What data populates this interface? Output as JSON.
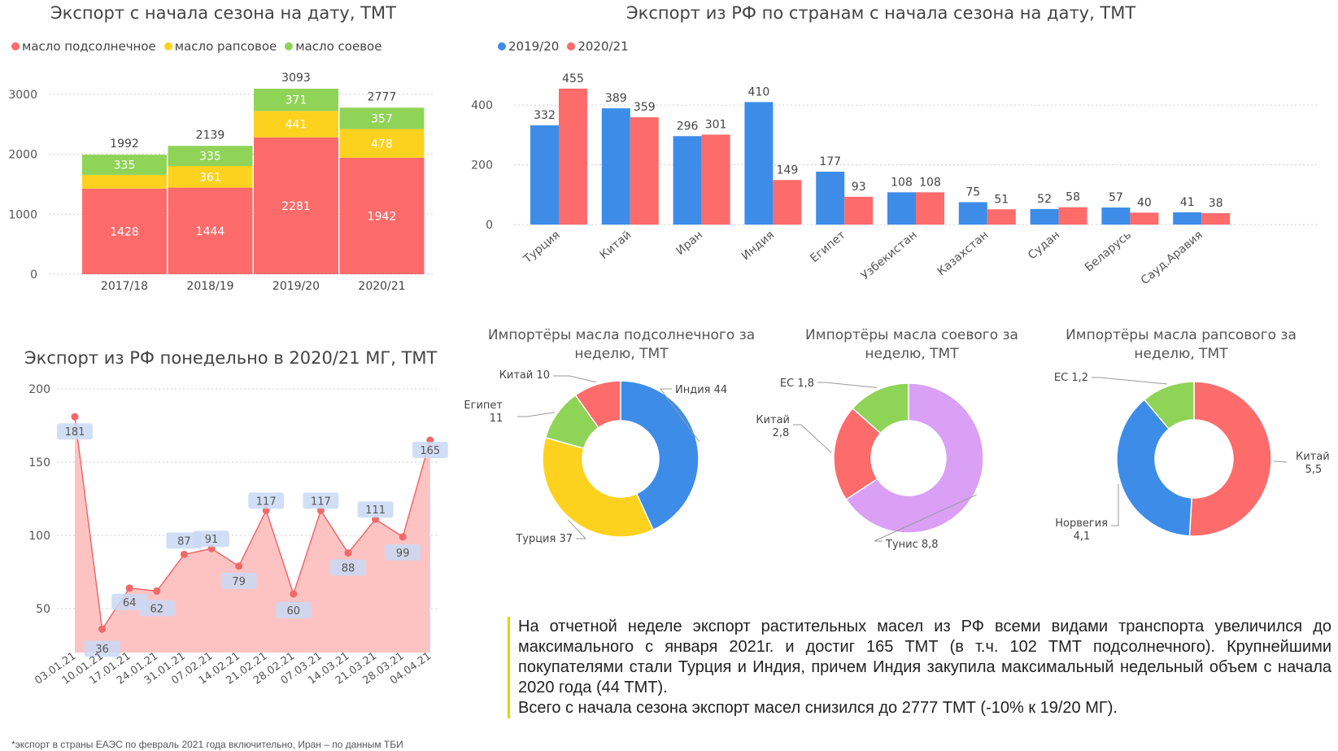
{
  "colors": {
    "sunflower": "#fd6b6b",
    "rapeseed": "#fdd21f",
    "soy": "#8fd357",
    "y2019": "#3d8de8",
    "y2020": "#fd6b6b",
    "weekly_line": "#f06868",
    "weekly_fill": "#fdc3c3",
    "label_box": "#c9d9f5",
    "note_bar": "#e8d300",
    "purple": "#d9a0f5",
    "blue": "#3d8de8",
    "yellow": "#fdd21f",
    "green": "#8fd357",
    "red": "#fd6b6b"
  },
  "chart_data": [
    {
      "id": "season_export",
      "type": "bar",
      "stacked": true,
      "title": "Экспорт с начала сезона на дату, ТМТ",
      "categories": [
        "2017/18",
        "2018/19",
        "2019/20",
        "2020/21"
      ],
      "series": [
        {
          "name": "масло подсолнечное",
          "values": [
            1428,
            1444,
            2281,
            1942
          ]
        },
        {
          "name": "масло рапсовое",
          "values": [
            229,
            361,
            441,
            478
          ]
        },
        {
          "name": "масло соевое",
          "values": [
            335,
            335,
            371,
            357
          ]
        }
      ],
      "segment_labels": [
        [
          "1428",
          "1444",
          "2281",
          "1942"
        ],
        [
          "",
          "361",
          "441",
          "478"
        ],
        [
          "335",
          "335",
          "371",
          "357"
        ]
      ],
      "totals": [
        1992,
        2139,
        3093,
        2777
      ],
      "ylim": [
        0,
        3000
      ],
      "yticks": [
        0,
        1000,
        2000,
        3000
      ],
      "legend_position": "top-left"
    },
    {
      "id": "export_by_country",
      "type": "bar",
      "title": "Экспорт из РФ по странам с начала сезона на дату, ТМТ",
      "categories": [
        "Турция",
        "Китай",
        "Иран",
        "Индия",
        "Египет",
        "Узбекистан",
        "Казахстан",
        "Судан",
        "Беларусь",
        "Сауд.Аравия"
      ],
      "series": [
        {
          "name": "2019/20",
          "values": [
            332,
            389,
            296,
            410,
            177,
            108,
            75,
            52,
            57,
            41
          ]
        },
        {
          "name": "2020/21",
          "values": [
            455,
            359,
            301,
            149,
            93,
            108,
            51,
            58,
            40,
            38
          ]
        }
      ],
      "ylim": [
        0,
        480
      ],
      "yticks": [
        0,
        200,
        400
      ],
      "legend_position": "top-left"
    },
    {
      "id": "weekly_export",
      "type": "area",
      "title": "Экспорт из РФ понедельно в 2020/21 МГ, ТМТ",
      "values": [
        181,
        36,
        64,
        62,
        87,
        91,
        79,
        117,
        60,
        117,
        88,
        111,
        99,
        165
      ],
      "tick_labels": [
        "03.01.21",
        "10.01.21",
        "17.01.21",
        "24.01.21",
        "31.01.21",
        "07.02.21",
        "14.02.21",
        "21.02.21",
        "28.02.21",
        "07.03.21",
        "14.03.21",
        "21.03.21",
        "28.03.21",
        "04.04.21"
      ],
      "ylim": [
        20,
        200
      ],
      "yticks": [
        50,
        100,
        150,
        200
      ]
    },
    {
      "id": "sunflower_importers",
      "type": "pie",
      "title": "Импортёры масла подсолнечного за неделю, ТМТ",
      "labels": [
        "Индия",
        "Турция",
        "Египет",
        "Китай"
      ],
      "values": [
        44,
        37,
        11,
        10
      ],
      "display_values": [
        "44",
        "37",
        "11",
        "10"
      ],
      "colors": [
        "#3d8de8",
        "#fdd21f",
        "#8fd357",
        "#fd6b6b"
      ]
    },
    {
      "id": "soy_importers",
      "type": "pie",
      "title": "Импортёры масла соевого за неделю, ТМТ",
      "labels": [
        "Тунис",
        "Китай",
        "ЕС"
      ],
      "values": [
        8.8,
        2.8,
        1.8
      ],
      "display_values": [
        "8,8",
        "2,8",
        "1,8"
      ],
      "colors": [
        "#d9a0f5",
        "#fd6b6b",
        "#8fd357"
      ]
    },
    {
      "id": "rapeseed_importers",
      "type": "pie",
      "title": "Импортёры масла рапсового за неделю, ТМТ",
      "labels": [
        "Китай",
        "Норвегия",
        "ЕС"
      ],
      "values": [
        5.5,
        4.1,
        1.2
      ],
      "display_values": [
        "5,5",
        "4,1",
        "1,2"
      ],
      "colors": [
        "#fd6b6b",
        "#3d8de8",
        "#8fd357"
      ]
    }
  ],
  "note": {
    "p1": "На отчетной неделе экспорт растительных масел из РФ всеми видами транспорта увеличился до максимального с января 2021г. и достиг 165 ТМТ (в т.ч. 102 ТМТ подсолнечного). Крупнейшими покупателями стали Турция и Индия, причем Индия закупила максимальный недельный объем с начала 2020 года (44 ТМТ).",
    "p2": "Всего с начала сезона экспорт масел снизился до 2777 ТМТ (-10% к 19/20 МГ)."
  },
  "footnote": "*экспорт в страны ЕАЭС по февраль 2021 года включительно, Иран – по данным ТБИ"
}
